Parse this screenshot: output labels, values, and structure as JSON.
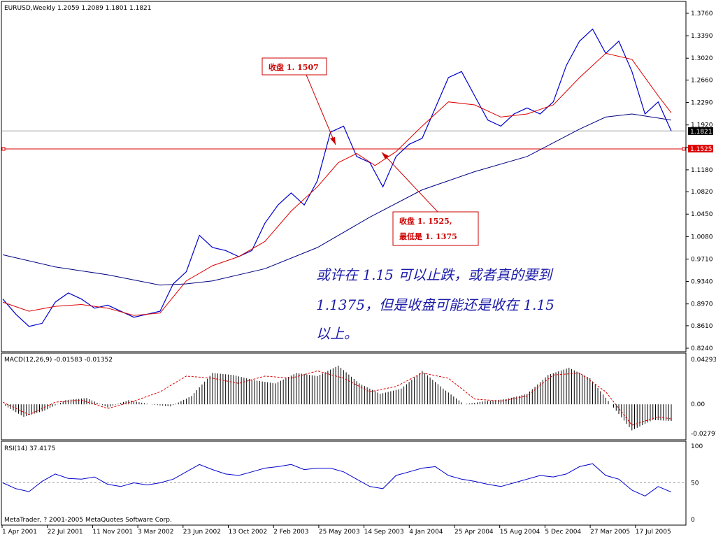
{
  "chart_data": [
    {
      "type": "line",
      "title": "EURUSD,Weekly  1.2059 1.2089 1.1801 1.1821",
      "y_ticks": [
        "1.3760",
        "1.3390",
        "1.3020",
        "1.2660",
        "1.2290",
        "1.1920",
        "1.1550",
        "1.1180",
        "1.0820",
        "1.0450",
        "1.0080",
        "0.9710",
        "0.9340",
        "0.8970",
        "0.8610",
        "0.8240"
      ],
      "ylim": [
        0.824,
        1.376
      ],
      "x_ticks": [
        "1 Apr 2001",
        "22 Jul 2001",
        "11 Nov 2001",
        "3 Mar 2002",
        "23 Jun 2002",
        "13 Oct 2002",
        "2 Feb 2003",
        "25 May 2003",
        "14 Sep 2003",
        "4 Jan 2004",
        "25 Apr 2004",
        "15 Aug 2004",
        "5 Dec 2004",
        "27 Mar 2005",
        "17 Jul 2005"
      ],
      "current_price_label": "1.1821",
      "current_price": 1.1821,
      "hline_label": "1.1525",
      "hline": 1.1525,
      "series": [
        {
          "color": "#0000cc",
          "x": [
            0,
            5,
            10,
            15,
            20,
            25,
            30,
            35,
            40,
            45,
            50,
            55,
            60,
            65,
            70,
            75,
            80,
            85,
            90,
            95,
            100,
            105,
            110,
            115,
            120,
            125,
            130,
            135,
            140,
            145,
            150,
            155,
            160,
            165,
            170,
            175,
            180,
            185,
            190,
            195,
            200,
            205,
            210,
            215,
            220,
            225,
            230,
            235,
            240,
            245,
            250,
            255
          ],
          "values": [
            0.905,
            0.88,
            0.86,
            0.865,
            0.9,
            0.915,
            0.905,
            0.89,
            0.895,
            0.885,
            0.875,
            0.88,
            0.885,
            0.93,
            0.95,
            1.01,
            0.99,
            0.985,
            0.975,
            0.985,
            1.03,
            1.06,
            1.08,
            1.06,
            1.1,
            1.18,
            1.19,
            1.14,
            1.13,
            1.09,
            1.14,
            1.16,
            1.17,
            1.22,
            1.27,
            1.28,
            1.24,
            1.2,
            1.19,
            1.21,
            1.22,
            1.21,
            1.23,
            1.29,
            1.33,
            1.35,
            1.31,
            1.33,
            1.28,
            1.21,
            1.23,
            1.182
          ]
        },
        {
          "color": "#dd0000",
          "x": [
            0,
            10,
            20,
            30,
            40,
            50,
            60,
            70,
            80,
            90,
            100,
            110,
            120,
            128,
            135,
            142,
            150,
            160,
            170,
            180,
            190,
            200,
            210,
            220,
            230,
            240,
            250,
            255
          ],
          "values": [
            0.9,
            0.885,
            0.893,
            0.896,
            0.89,
            0.878,
            0.882,
            0.935,
            0.96,
            0.975,
            1.0,
            1.05,
            1.09,
            1.13,
            1.145,
            1.125,
            1.148,
            1.19,
            1.23,
            1.225,
            1.205,
            1.21,
            1.225,
            1.27,
            1.31,
            1.3,
            1.24,
            1.212
          ]
        },
        {
          "color": "#000080",
          "x": [
            0,
            20,
            40,
            60,
            70,
            80,
            100,
            120,
            140,
            160,
            180,
            200,
            220,
            230,
            240,
            255
          ],
          "values": [
            0.978,
            0.958,
            0.945,
            0.928,
            0.93,
            0.935,
            0.955,
            0.99,
            1.04,
            1.085,
            1.115,
            1.14,
            1.185,
            1.205,
            1.21,
            1.2
          ]
        }
      ],
      "annotations": [
        {
          "text": "收盘 1. 1507",
          "target_x": 126,
          "target_y": 1.142
        },
        {
          "lines": [
            "收盘 1. 1525,",
            "最低是 1. 1375"
          ],
          "target_x": 143,
          "target_y": 1.145
        },
        {
          "lines": [
            "或许在 1.15 可以止跌，或者真的要到",
            "1.1375，但是收盘可能还是收在 1.15",
            "以上。"
          ]
        }
      ]
    },
    {
      "type": "bar",
      "title": "MACD(12,26,9) -0.01583 -0.01352",
      "y_ticks": [
        "0.04293",
        "0.00",
        "-0.02797"
      ],
      "ylim": [
        -0.03,
        0.045
      ],
      "hist_x": [
        0,
        8,
        16,
        24,
        32,
        40,
        48,
        56,
        64,
        72,
        80,
        88,
        96,
        104,
        112,
        120,
        128,
        136,
        144,
        152,
        160,
        168,
        176,
        184,
        192,
        200,
        208,
        216,
        224,
        232,
        240,
        248,
        255
      ],
      "hist_values": [
        0.0,
        -0.012,
        -0.006,
        0.004,
        0.006,
        -0.003,
        0.004,
        0.0,
        -0.002,
        0.008,
        0.03,
        0.028,
        0.023,
        0.02,
        0.03,
        0.027,
        0.037,
        0.02,
        0.01,
        0.015,
        0.032,
        0.015,
        0.0,
        0.003,
        0.005,
        0.01,
        0.028,
        0.035,
        0.025,
        0.0,
        -0.025,
        -0.015,
        -0.016
      ],
      "signal_x": [
        0,
        10,
        20,
        30,
        40,
        50,
        60,
        70,
        80,
        90,
        100,
        110,
        120,
        130,
        140,
        150,
        160,
        170,
        180,
        190,
        200,
        210,
        220,
        230,
        240,
        250,
        255
      ],
      "signal_values": [
        0.002,
        -0.01,
        0.002,
        0.004,
        -0.004,
        0.003,
        0.012,
        0.027,
        0.025,
        0.02,
        0.027,
        0.025,
        0.032,
        0.025,
        0.012,
        0.017,
        0.03,
        0.025,
        0.005,
        0.003,
        0.008,
        0.028,
        0.03,
        0.012,
        -0.02,
        -0.012,
        -0.014
      ]
    },
    {
      "type": "line",
      "title": "RSI(14) 37.4175",
      "y_ticks": [
        "100",
        "50",
        "0"
      ],
      "ylim": [
        0,
        100
      ],
      "level": 50,
      "x": [
        0,
        5,
        10,
        15,
        20,
        25,
        30,
        35,
        40,
        45,
        50,
        55,
        60,
        65,
        70,
        75,
        80,
        85,
        90,
        95,
        100,
        105,
        110,
        115,
        120,
        125,
        130,
        135,
        140,
        145,
        150,
        155,
        160,
        165,
        170,
        175,
        180,
        185,
        190,
        195,
        200,
        205,
        210,
        215,
        220,
        225,
        230,
        235,
        240,
        245,
        250,
        255
      ],
      "values": [
        50,
        42,
        38,
        52,
        62,
        56,
        55,
        58,
        48,
        45,
        50,
        47,
        50,
        55,
        65,
        75,
        68,
        62,
        60,
        65,
        70,
        72,
        75,
        68,
        70,
        70,
        65,
        55,
        45,
        42,
        60,
        65,
        70,
        72,
        60,
        55,
        52,
        48,
        45,
        50,
        55,
        60,
        58,
        62,
        72,
        76,
        60,
        55,
        40,
        32,
        45,
        37.4175
      ]
    }
  ],
  "footer": {
    "copyright": "MetaTrader, ? 2001-2005 MetaQuotes Software Corp."
  },
  "colors": {
    "price": "#0000cc",
    "ma_fast": "#dd0000",
    "ma_slow": "#000080",
    "macd_signal": "#dd0000",
    "rsi": "#0000cc"
  }
}
